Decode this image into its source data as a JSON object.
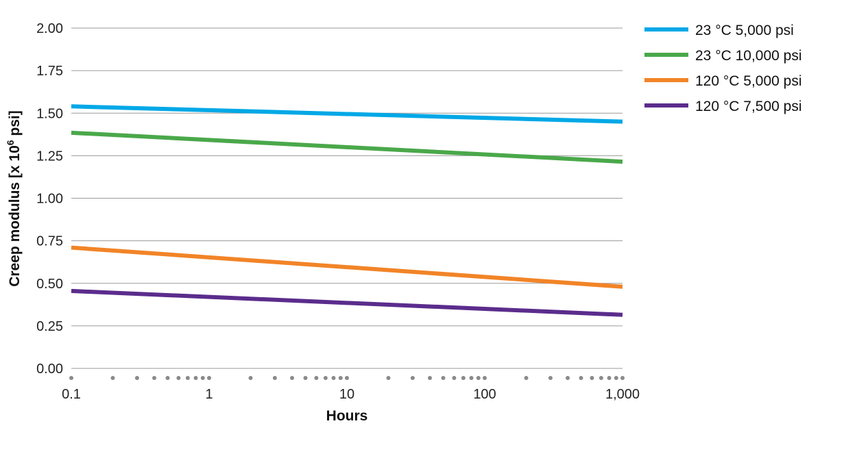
{
  "chart_data": {
    "type": "line",
    "xscale": "log",
    "xlabel": "Hours",
    "ylabel_main": "Creep modulus [x 10",
    "ylabel_sup": "6",
    "ylabel_end": " psi]",
    "xlim": [
      0.1,
      1000
    ],
    "ylim": [
      0,
      2
    ],
    "x_ticks": [
      0.1,
      1,
      10,
      100,
      1000
    ],
    "x_tick_labels": [
      "0.1",
      "1",
      "10",
      "100",
      "1,000"
    ],
    "y_ticks": [
      0,
      0.25,
      0.5,
      0.75,
      1,
      1.25,
      1.5,
      1.75,
      2
    ],
    "y_tick_labels": [
      "0.00",
      "0.25",
      "0.50",
      "0.75",
      "1.00",
      "1.25",
      "1.50",
      "1.75",
      "2.00"
    ],
    "grid": true,
    "minor_tick_marks": "dots",
    "legend_position": "right",
    "series": [
      {
        "name": "23 °C 5,000 psi",
        "color": "#00a8e6",
        "x": [
          0.1,
          1000
        ],
        "y": [
          1.54,
          1.45
        ]
      },
      {
        "name": "23 °C 10,000 psi",
        "color": "#4aa84a",
        "x": [
          0.1,
          1000
        ],
        "y": [
          1.385,
          1.215
        ]
      },
      {
        "name": "120 °C 5,000 psi",
        "color": "#f28427",
        "x": [
          0.1,
          1000
        ],
        "y": [
          0.71,
          0.48
        ]
      },
      {
        "name": "120 °C 7,500 psi",
        "color": "#5b2c8c",
        "x": [
          0.1,
          1000
        ],
        "y": [
          0.455,
          0.315
        ]
      }
    ]
  }
}
